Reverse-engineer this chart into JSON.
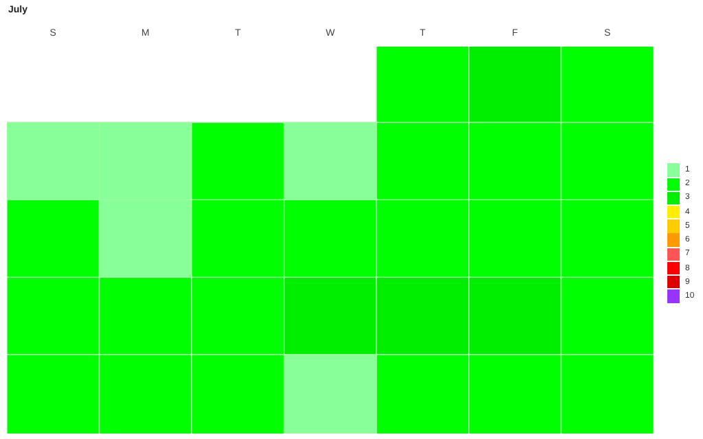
{
  "chart_data": {
    "type": "heatmap",
    "title": "July",
    "categories": [
      "S",
      "M",
      "T",
      "W",
      "T",
      "F",
      "S"
    ],
    "y_categories": [
      null,
      null,
      null,
      null,
      null
    ],
    "cells": [
      [
        null,
        null,
        null,
        null,
        2,
        3,
        2
      ],
      [
        1,
        1,
        2,
        1,
        2,
        2,
        2
      ],
      [
        2,
        1,
        2,
        2,
        2,
        2,
        2
      ],
      [
        2,
        2,
        2,
        3,
        3,
        3,
        2
      ],
      [
        2,
        2,
        2,
        1,
        2,
        2,
        2
      ]
    ],
    "clim": [
      1,
      10
    ],
    "cticks": [
      1,
      2,
      3,
      4,
      5,
      6,
      7,
      8,
      9,
      10
    ],
    "colors": [
      "#88ff99",
      "#00ff00",
      "#00ee00",
      "#ffee00",
      "#ffcc00",
      "#ff9900",
      "#ff5555",
      "#ff0000",
      "#dd0000",
      "#9933ff"
    ]
  }
}
